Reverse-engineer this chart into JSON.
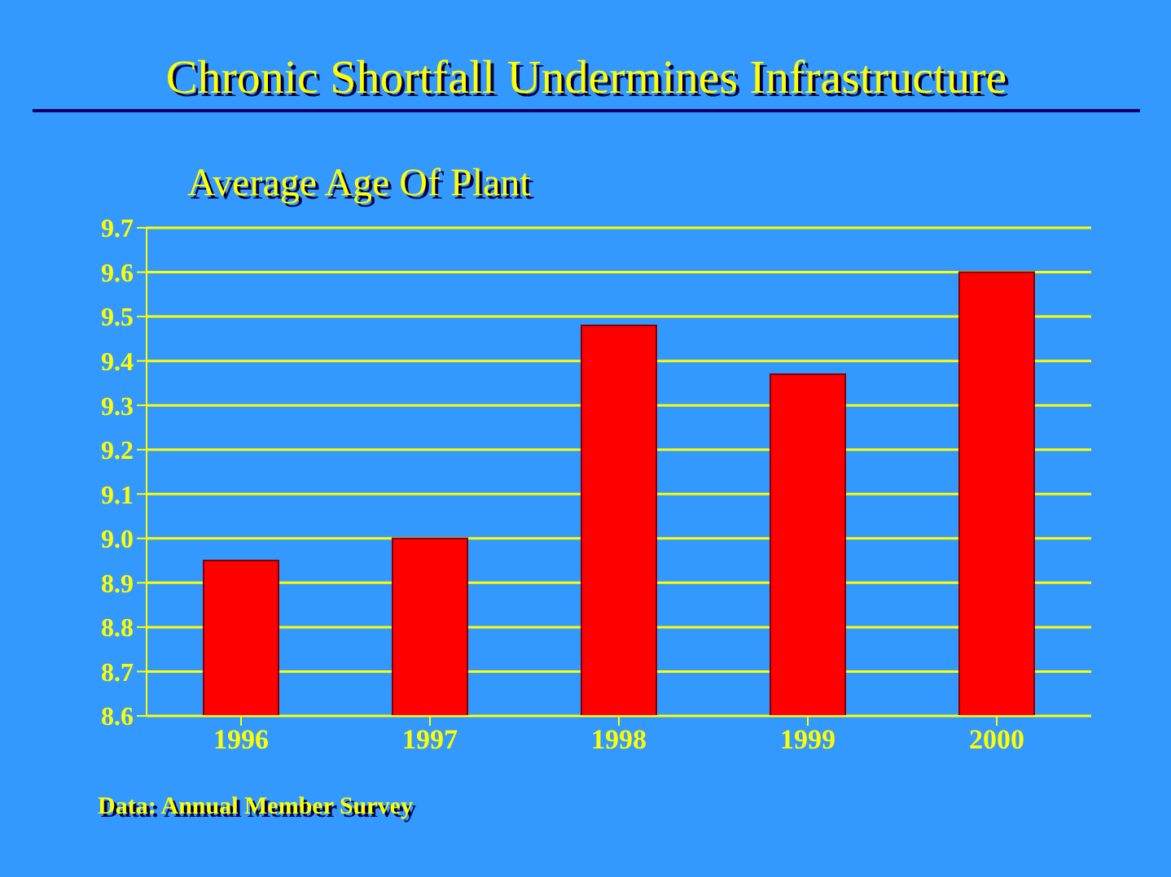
{
  "chart_data": {
    "type": "bar",
    "title": "Chronic Shortfall Undermines Infrastructure",
    "subtitle": "Average Age Of Plant",
    "categories": [
      "1996",
      "1997",
      "1998",
      "1999",
      "2000"
    ],
    "values": [
      8.95,
      9.0,
      9.48,
      9.37,
      9.6
    ],
    "color": "#ff0000",
    "ylim": [
      8.6,
      9.7
    ],
    "yticks": [
      8.6,
      8.7,
      8.8,
      8.9,
      {
        "value": 9.0,
        "label": "9.0"
      },
      9.1,
      9.2,
      9.3,
      9.4,
      9.5,
      9.6,
      9.7
    ],
    "grid": "y",
    "annotations": [
      "Data: Annual Member Survey"
    ]
  }
}
